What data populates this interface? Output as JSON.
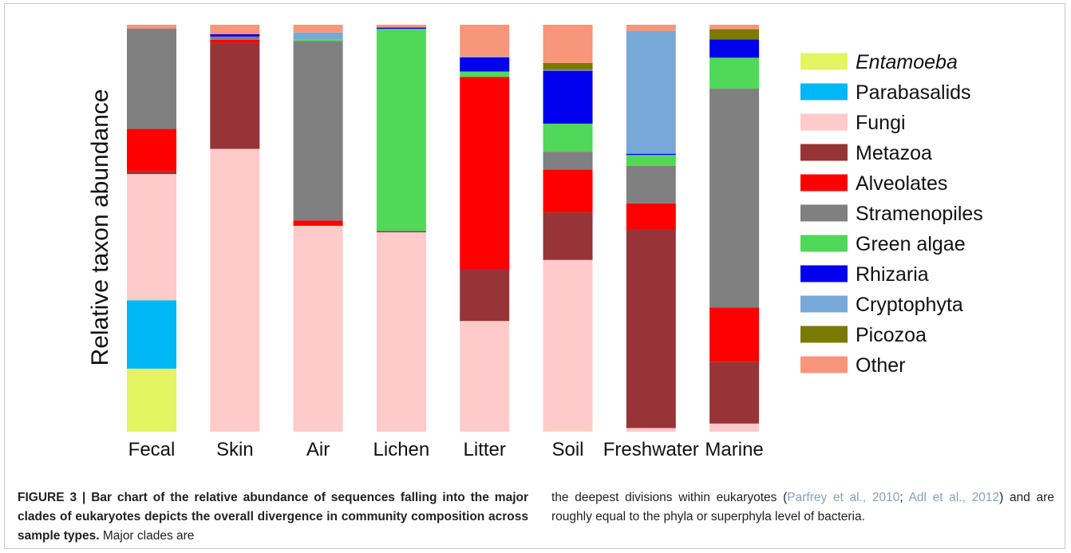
{
  "chart_data": {
    "type": "bar",
    "stacked": true,
    "normalized": true,
    "ylabel": "Relative taxon abundance",
    "xlabel": "",
    "ylim": [
      0,
      1
    ],
    "grid": false,
    "legend_position": "right",
    "categories": [
      "Fecal",
      "Skin",
      "Air",
      "Lichen",
      "Litter",
      "Soil",
      "Freshwater",
      "Marine"
    ],
    "series": [
      {
        "name": "Entamoeba",
        "italic": true,
        "color": "#e4f562",
        "values": [
          0.155,
          0,
          0,
          0,
          0,
          0.002,
          0,
          0
        ]
      },
      {
        "name": "Parabasalids",
        "color": "#00b8f5",
        "values": [
          0.168,
          0,
          0,
          0,
          0,
          0,
          0,
          0
        ]
      },
      {
        "name": "Fungi",
        "color": "#ffcaca",
        "values": [
          0.31,
          0.695,
          0.506,
          0.49,
          0.272,
          0.42,
          0.009,
          0.02
        ]
      },
      {
        "name": "Metazoa",
        "color": "#963437",
        "values": [
          0.008,
          0.261,
          0,
          0.003,
          0.128,
          0.117,
          0.488,
          0.152
        ]
      },
      {
        "name": "Alveolates",
        "color": "#ff0000",
        "values": [
          0.103,
          0.007,
          0.013,
          0,
          0.472,
          0.105,
          0.064,
          0.133
        ]
      },
      {
        "name": "Stramenopiles",
        "color": "#808080",
        "values": [
          0.247,
          0.008,
          0.441,
          0,
          0,
          0.044,
          0.092,
          0.538
        ]
      },
      {
        "name": "Green algae",
        "color": "#50d858",
        "values": [
          0,
          0,
          0.004,
          0.497,
          0.013,
          0.069,
          0.027,
          0.076
        ]
      },
      {
        "name": "Rhizaria",
        "color": "#0000ee",
        "values": [
          0,
          0.006,
          0,
          0.003,
          0.035,
          0.13,
          0.003,
          0.045
        ]
      },
      {
        "name": "Cryptophyta",
        "color": "#78a8d8",
        "values": [
          0,
          0,
          0.017,
          0,
          0.002,
          0.002,
          0.302,
          0
        ]
      },
      {
        "name": "Picozoa",
        "color": "#7a7a00",
        "values": [
          0,
          0,
          0,
          0,
          0,
          0.017,
          0,
          0.025
        ]
      },
      {
        "name": "Other",
        "color": "#f7967a",
        "values": [
          0.009,
          0.023,
          0.019,
          0.007,
          0.078,
          0.094,
          0.015,
          0.011
        ]
      }
    ]
  },
  "caption": {
    "label": "FIGURE 3 | Bar chart of the relative abundance of sequences falling into the major clades of eukaryotes depicts the overall divergence in community composition across sample types.",
    "text_left": " Major clades are",
    "right_pre": "the deepest divisions within eukaryotes (",
    "cite1": "Parfrey et al., 2010",
    "right_sep": "; ",
    "cite2": "Adl et al., 2012",
    "right_post": ") and are roughly equal to the phyla or superphyla level of bacteria."
  }
}
